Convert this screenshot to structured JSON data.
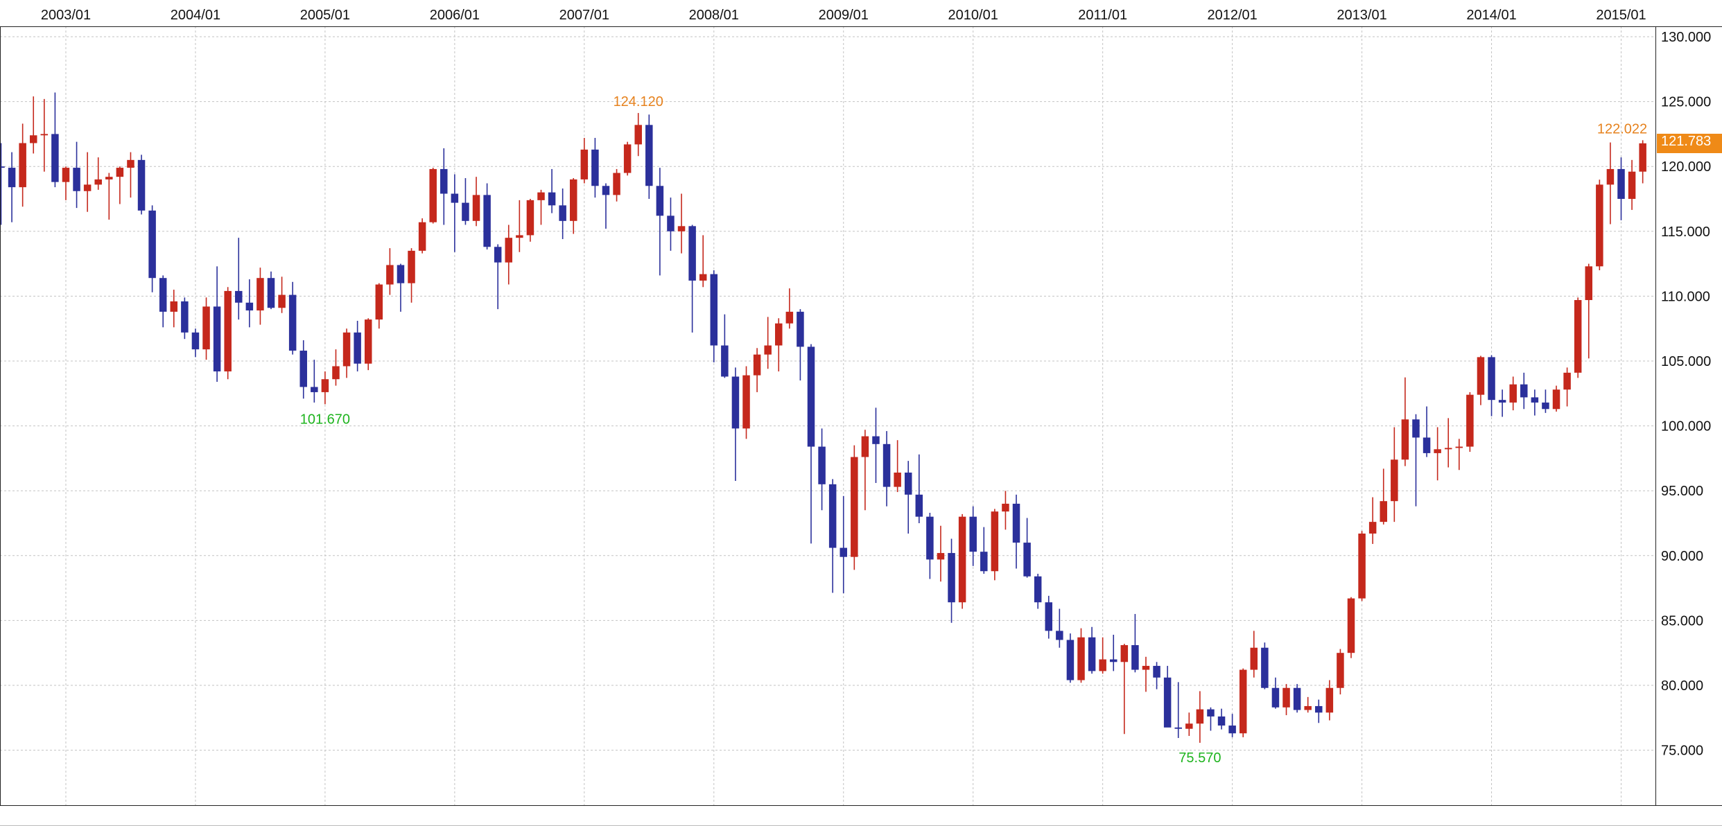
{
  "chart": {
    "last_price": {
      "text": "121.783",
      "value": 121.783,
      "bg_color": "#ef8a17",
      "text_color": "#ffffff"
    },
    "annotations": [
      {
        "text": "124.120",
        "value": 124.12,
        "date": "2007/06",
        "kind": "high",
        "color": "#e6821e"
      },
      {
        "text": "101.670",
        "value": 101.67,
        "date": "2005/01",
        "kind": "low",
        "color": "#1eb41e"
      },
      {
        "text": "75.570",
        "value": 75.57,
        "date": "2011/10",
        "kind": "low",
        "color": "#1eb41e"
      },
      {
        "text": "122.022",
        "value": 122.022,
        "date": "2015/03",
        "kind": "high",
        "color": "#e6821e"
      }
    ]
  },
  "chart_data": {
    "type": "candlestick",
    "timeframe": "monthly",
    "grid": "dashed",
    "legend": "none",
    "colors": {
      "up_candle": "#c5281c",
      "down_candle": "#2b309b",
      "grid": "#c3c3c3",
      "background": "#ffffff",
      "axis_text": "#111111"
    },
    "x_axis": {
      "position": "top",
      "ticks": [
        "2003/01",
        "2004/01",
        "2005/01",
        "2006/01",
        "2007/01",
        "2008/01",
        "2009/01",
        "2010/01",
        "2011/01",
        "2012/01",
        "2013/01",
        "2014/01",
        "2015/01"
      ]
    },
    "y_axis": {
      "position": "right",
      "min": 75,
      "max": 130,
      "step": 5,
      "ticks": [
        {
          "label": "130.000",
          "value": 130
        },
        {
          "label": "125.000",
          "value": 125
        },
        {
          "label": "120.000",
          "value": 120
        },
        {
          "label": "115.000",
          "value": 115
        },
        {
          "label": "110.000",
          "value": 110
        },
        {
          "label": "105.000",
          "value": 105
        },
        {
          "label": "100.000",
          "value": 100
        },
        {
          "label": "95.000",
          "value": 95
        },
        {
          "label": "90.000",
          "value": 90
        },
        {
          "label": "85.000",
          "value": 85
        },
        {
          "label": "80.000",
          "value": 80
        },
        {
          "label": "75.000",
          "value": 75
        }
      ]
    },
    "candle_format": [
      "month",
      "open",
      "high",
      "low",
      "close"
    ],
    "candles": [
      [
        "2002/07",
        120.0,
        121.8,
        115.5,
        119.9
      ],
      [
        "2002/08",
        119.9,
        121.1,
        115.7,
        118.4
      ],
      [
        "2002/09",
        118.4,
        123.3,
        116.9,
        121.8
      ],
      [
        "2002/10",
        121.8,
        125.4,
        121.0,
        122.4
      ],
      [
        "2002/11",
        122.4,
        125.2,
        119.6,
        122.5
      ],
      [
        "2002/12",
        122.5,
        125.7,
        118.4,
        118.8
      ],
      [
        "2003/01",
        118.8,
        120.0,
        117.4,
        119.9
      ],
      [
        "2003/02",
        119.9,
        121.9,
        116.8,
        118.1
      ],
      [
        "2003/03",
        118.1,
        121.1,
        116.5,
        118.6
      ],
      [
        "2003/04",
        118.6,
        120.7,
        118.2,
        119.0
      ],
      [
        "2003/05",
        119.0,
        119.5,
        115.9,
        119.2
      ],
      [
        "2003/06",
        119.2,
        120.0,
        117.1,
        119.9
      ],
      [
        "2003/07",
        119.9,
        121.1,
        117.6,
        120.5
      ],
      [
        "2003/08",
        120.5,
        120.9,
        116.3,
        116.6
      ],
      [
        "2003/09",
        116.6,
        117.0,
        110.3,
        111.4
      ],
      [
        "2003/10",
        111.4,
        111.6,
        107.6,
        108.8
      ],
      [
        "2003/11",
        108.8,
        110.5,
        107.6,
        109.6
      ],
      [
        "2003/12",
        109.6,
        109.9,
        106.7,
        107.2
      ],
      [
        "2004/01",
        107.2,
        107.5,
        105.3,
        105.9
      ],
      [
        "2004/02",
        105.9,
        109.9,
        105.1,
        109.2
      ],
      [
        "2004/03",
        109.2,
        112.3,
        103.4,
        104.2
      ],
      [
        "2004/04",
        104.2,
        110.7,
        103.6,
        110.4
      ],
      [
        "2004/05",
        110.4,
        114.5,
        108.2,
        109.5
      ],
      [
        "2004/06",
        109.5,
        111.3,
        107.6,
        108.9
      ],
      [
        "2004/07",
        108.9,
        112.2,
        107.8,
        111.4
      ],
      [
        "2004/08",
        111.4,
        111.9,
        109.0,
        109.1
      ],
      [
        "2004/09",
        109.1,
        111.5,
        108.7,
        110.1
      ],
      [
        "2004/10",
        110.1,
        111.1,
        105.5,
        105.8
      ],
      [
        "2004/11",
        105.8,
        106.6,
        102.1,
        103.0
      ],
      [
        "2004/12",
        103.0,
        105.1,
        101.8,
        102.6
      ],
      [
        "2005/01",
        102.6,
        104.2,
        101.67,
        103.6
      ],
      [
        "2005/02",
        103.6,
        105.9,
        103.1,
        104.6
      ],
      [
        "2005/03",
        104.6,
        107.5,
        103.7,
        107.2
      ],
      [
        "2005/04",
        107.2,
        108.1,
        104.2,
        104.8
      ],
      [
        "2005/05",
        104.8,
        108.3,
        104.3,
        108.2
      ],
      [
        "2005/06",
        108.2,
        111.0,
        107.5,
        110.9
      ],
      [
        "2005/07",
        110.9,
        113.7,
        110.1,
        112.4
      ],
      [
        "2005/08",
        112.4,
        112.5,
        108.8,
        111.0
      ],
      [
        "2005/09",
        111.0,
        113.7,
        109.5,
        113.5
      ],
      [
        "2005/10",
        113.5,
        116.0,
        113.3,
        115.7
      ],
      [
        "2005/11",
        115.7,
        119.9,
        115.6,
        119.8
      ],
      [
        "2005/12",
        119.8,
        121.4,
        115.5,
        117.9
      ],
      [
        "2006/01",
        117.9,
        119.4,
        113.4,
        117.2
      ],
      [
        "2006/02",
        117.2,
        119.1,
        115.5,
        115.8
      ],
      [
        "2006/03",
        115.8,
        119.2,
        115.4,
        117.8
      ],
      [
        "2006/04",
        117.8,
        118.7,
        113.6,
        113.8
      ],
      [
        "2006/05",
        113.8,
        114.0,
        109.0,
        112.6
      ],
      [
        "2006/06",
        112.6,
        115.5,
        110.9,
        114.5
      ],
      [
        "2006/07",
        114.5,
        117.4,
        113.4,
        114.7
      ],
      [
        "2006/08",
        114.7,
        117.5,
        114.2,
        117.4
      ],
      [
        "2006/09",
        117.4,
        118.2,
        115.5,
        118.0
      ],
      [
        "2006/10",
        118.0,
        119.8,
        116.4,
        117.0
      ],
      [
        "2006/11",
        117.0,
        118.3,
        114.4,
        115.8
      ],
      [
        "2006/12",
        115.8,
        119.1,
        114.8,
        119.0
      ],
      [
        "2007/01",
        119.0,
        122.2,
        118.7,
        121.3
      ],
      [
        "2007/02",
        121.3,
        122.2,
        117.6,
        118.5
      ],
      [
        "2007/03",
        118.5,
        118.7,
        115.2,
        117.8
      ],
      [
        "2007/04",
        117.8,
        119.8,
        117.3,
        119.5
      ],
      [
        "2007/05",
        119.5,
        121.9,
        119.3,
        121.7
      ],
      [
        "2007/06",
        121.7,
        124.12,
        120.8,
        123.2
      ],
      [
        "2007/07",
        123.2,
        124.0,
        117.5,
        118.5
      ],
      [
        "2007/08",
        118.5,
        119.9,
        111.6,
        116.2
      ],
      [
        "2007/09",
        116.2,
        117.6,
        113.5,
        115.0
      ],
      [
        "2007/10",
        115.0,
        117.9,
        113.3,
        115.4
      ],
      [
        "2007/11",
        115.4,
        115.5,
        107.2,
        111.2
      ],
      [
        "2007/12",
        111.2,
        114.7,
        110.7,
        111.7
      ],
      [
        "2008/01",
        111.7,
        112.0,
        104.9,
        106.2
      ],
      [
        "2008/02",
        106.2,
        108.6,
        103.7,
        103.8
      ],
      [
        "2008/03",
        103.8,
        104.5,
        95.76,
        99.8
      ],
      [
        "2008/04",
        99.8,
        104.6,
        99.0,
        103.9
      ],
      [
        "2008/05",
        103.9,
        106.0,
        102.6,
        105.5
      ],
      [
        "2008/06",
        105.5,
        108.4,
        104.4,
        106.2
      ],
      [
        "2008/07",
        106.2,
        108.3,
        104.2,
        107.9
      ],
      [
        "2008/08",
        107.9,
        110.6,
        107.5,
        108.8
      ],
      [
        "2008/09",
        108.8,
        109.0,
        103.5,
        106.1
      ],
      [
        "2008/10",
        106.1,
        106.3,
        90.93,
        98.4
      ],
      [
        "2008/11",
        98.4,
        99.8,
        93.5,
        95.5
      ],
      [
        "2008/12",
        95.5,
        95.9,
        87.13,
        90.6
      ],
      [
        "2009/01",
        90.6,
        94.6,
        87.1,
        89.9
      ],
      [
        "2009/02",
        89.9,
        98.5,
        88.9,
        97.6
      ],
      [
        "2009/03",
        97.6,
        99.7,
        93.5,
        99.2
      ],
      [
        "2009/04",
        99.2,
        101.4,
        95.6,
        98.6
      ],
      [
        "2009/05",
        98.6,
        99.6,
        93.8,
        95.3
      ],
      [
        "2009/06",
        95.3,
        98.9,
        94.9,
        96.4
      ],
      [
        "2009/07",
        96.4,
        97.3,
        91.7,
        94.7
      ],
      [
        "2009/08",
        94.7,
        97.8,
        92.5,
        93.0
      ],
      [
        "2009/09",
        93.0,
        93.3,
        88.2,
        89.7
      ],
      [
        "2009/10",
        89.7,
        92.3,
        88.0,
        90.2
      ],
      [
        "2009/11",
        90.2,
        91.3,
        84.82,
        86.4
      ],
      [
        "2009/12",
        86.4,
        93.2,
        85.9,
        93.0
      ],
      [
        "2010/01",
        93.0,
        93.8,
        89.2,
        90.3
      ],
      [
        "2010/02",
        90.3,
        92.2,
        88.6,
        88.8
      ],
      [
        "2010/03",
        88.8,
        93.6,
        88.1,
        93.4
      ],
      [
        "2010/04",
        93.4,
        94.99,
        92.0,
        94.0
      ],
      [
        "2010/05",
        94.0,
        94.7,
        89.0,
        91.0
      ],
      [
        "2010/06",
        91.0,
        92.9,
        88.3,
        88.4
      ],
      [
        "2010/07",
        88.4,
        88.6,
        85.9,
        86.4
      ],
      [
        "2010/08",
        86.4,
        86.9,
        83.6,
        84.2
      ],
      [
        "2010/09",
        84.2,
        85.9,
        82.9,
        83.5
      ],
      [
        "2010/10",
        83.5,
        84.0,
        80.2,
        80.4
      ],
      [
        "2010/11",
        80.4,
        84.4,
        80.2,
        83.7
      ],
      [
        "2010/12",
        83.7,
        84.5,
        80.9,
        81.1
      ],
      [
        "2011/01",
        81.1,
        83.7,
        80.9,
        82.0
      ],
      [
        "2011/02",
        82.0,
        83.9,
        81.1,
        81.8
      ],
      [
        "2011/03",
        81.8,
        83.2,
        76.25,
        83.1
      ],
      [
        "2011/04",
        83.1,
        85.5,
        81.0,
        81.2
      ],
      [
        "2011/05",
        81.2,
        82.2,
        79.5,
        81.5
      ],
      [
        "2011/06",
        81.5,
        81.8,
        79.7,
        80.6
      ],
      [
        "2011/07",
        80.6,
        81.5,
        76.9,
        76.75
      ],
      [
        "2011/08",
        76.75,
        80.25,
        75.94,
        76.65
      ],
      [
        "2011/09",
        76.65,
        77.9,
        76.1,
        77.05
      ],
      [
        "2011/10",
        77.05,
        79.55,
        75.57,
        78.15
      ],
      [
        "2011/11",
        78.15,
        78.3,
        76.5,
        77.6
      ],
      [
        "2011/12",
        77.6,
        78.2,
        76.6,
        76.9
      ],
      [
        "2012/01",
        76.9,
        77.8,
        76.0,
        76.3
      ],
      [
        "2012/02",
        76.3,
        81.3,
        76.0,
        81.2
      ],
      [
        "2012/03",
        81.2,
        84.2,
        80.6,
        82.9
      ],
      [
        "2012/04",
        82.9,
        83.3,
        79.7,
        79.8
      ],
      [
        "2012/05",
        79.8,
        80.6,
        78.2,
        78.3
      ],
      [
        "2012/06",
        78.3,
        80.1,
        77.7,
        79.8
      ],
      [
        "2012/07",
        79.8,
        80.1,
        77.9,
        78.1
      ],
      [
        "2012/08",
        78.1,
        79.1,
        77.9,
        78.4
      ],
      [
        "2012/09",
        78.4,
        78.9,
        77.1,
        77.9
      ],
      [
        "2012/10",
        77.9,
        80.4,
        77.3,
        79.8
      ],
      [
        "2012/11",
        79.8,
        82.8,
        79.3,
        82.5
      ],
      [
        "2012/12",
        82.5,
        86.8,
        82.1,
        86.7
      ],
      [
        "2013/01",
        86.7,
        91.9,
        86.5,
        91.7
      ],
      [
        "2013/02",
        91.7,
        94.5,
        90.9,
        92.6
      ],
      [
        "2013/03",
        92.6,
        96.7,
        92.4,
        94.2
      ],
      [
        "2013/04",
        94.2,
        99.9,
        92.6,
        97.4
      ],
      [
        "2013/05",
        97.4,
        103.74,
        96.9,
        100.5
      ],
      [
        "2013/06",
        100.5,
        100.9,
        93.8,
        99.1
      ],
      [
        "2013/07",
        99.1,
        101.5,
        97.6,
        97.9
      ],
      [
        "2013/08",
        97.9,
        99.9,
        95.8,
        98.2
      ],
      [
        "2013/09",
        98.2,
        100.6,
        96.8,
        98.3
      ],
      [
        "2013/10",
        98.3,
        99.0,
        96.6,
        98.4
      ],
      [
        "2013/11",
        98.4,
        102.6,
        98.0,
        102.4
      ],
      [
        "2013/12",
        102.4,
        105.4,
        101.6,
        105.3
      ],
      [
        "2014/01",
        105.3,
        105.45,
        100.75,
        102.0
      ],
      [
        "2014/02",
        102.0,
        102.8,
        100.7,
        101.8
      ],
      [
        "2014/03",
        101.8,
        103.8,
        101.2,
        103.2
      ],
      [
        "2014/04",
        103.2,
        104.1,
        101.3,
        102.2
      ],
      [
        "2014/05",
        102.2,
        102.8,
        100.8,
        101.8
      ],
      [
        "2014/06",
        101.8,
        102.8,
        101.0,
        101.3
      ],
      [
        "2014/07",
        101.3,
        103.1,
        101.1,
        102.8
      ],
      [
        "2014/08",
        102.8,
        104.5,
        101.5,
        104.1
      ],
      [
        "2014/09",
        104.1,
        109.9,
        103.7,
        109.7
      ],
      [
        "2014/10",
        109.7,
        112.5,
        105.2,
        112.3
      ],
      [
        "2014/11",
        112.3,
        118.98,
        112.0,
        118.6
      ],
      [
        "2014/12",
        118.6,
        121.85,
        115.55,
        119.8
      ],
      [
        "2015/01",
        119.8,
        120.7,
        115.85,
        117.5
      ],
      [
        "2015/02",
        117.5,
        120.5,
        116.65,
        119.6
      ],
      [
        "2015/03",
        119.6,
        122.022,
        118.7,
        121.783
      ]
    ]
  }
}
